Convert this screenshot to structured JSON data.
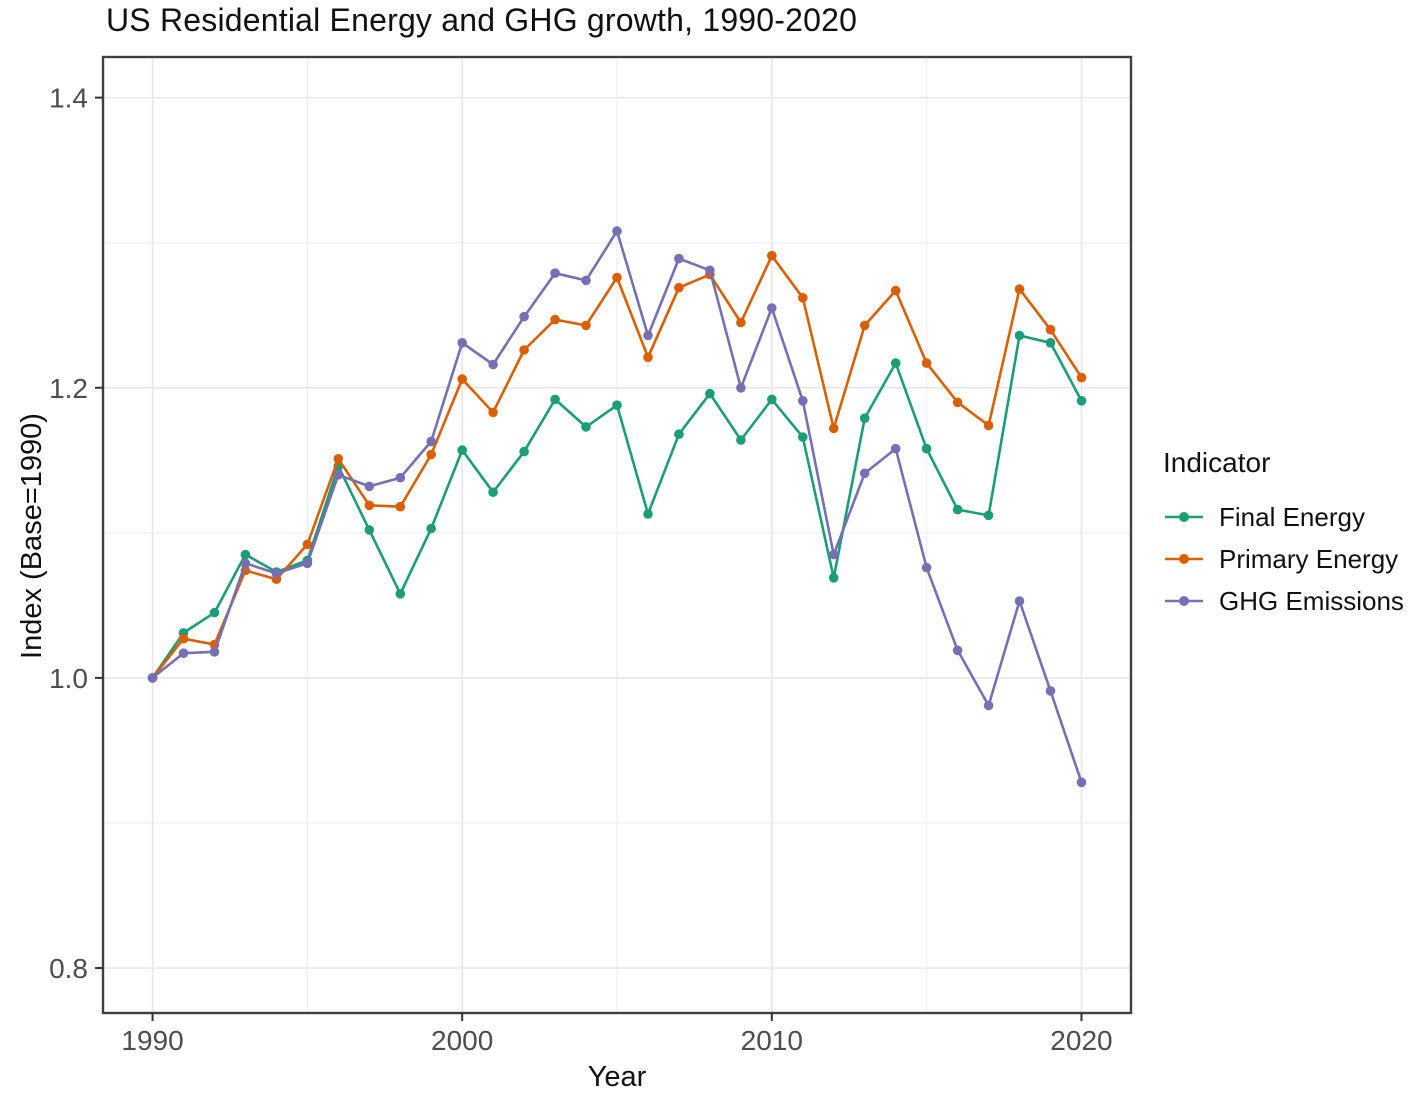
{
  "title": "US Residential Energy and GHG growth, 1990-2020",
  "axes": {
    "x": {
      "label": "Year",
      "major_ticks": [
        1990,
        2000,
        2010,
        2020
      ],
      "major_tick_labels": [
        "1990",
        "2000",
        "2010",
        "2020"
      ],
      "minor_ticks": [
        1995,
        2005,
        2015
      ],
      "range": [
        1988.4,
        2021.6
      ]
    },
    "y": {
      "label": "Index (Base=1990)",
      "major_ticks": [
        0.8,
        1.0,
        1.2,
        1.4
      ],
      "major_tick_labels": [
        "0.8",
        "1.0",
        "1.2",
        "1.4"
      ],
      "minor_ticks": [
        0.9,
        1.1,
        1.3
      ],
      "range": [
        0.769,
        1.428
      ]
    }
  },
  "legend": {
    "title": "Indicator",
    "position": "right",
    "items": [
      {
        "label": "Final Energy",
        "color": "#1b9e77"
      },
      {
        "label": "Primary Energy",
        "color": "#d95f02"
      },
      {
        "label": "GHG Emissions",
        "color": "#7570b3"
      }
    ]
  },
  "style_colors": {
    "panel_border": "#3f3f3f",
    "grid_major": "#e7e7e7",
    "grid_minor": "#f1f1f1",
    "tick_mark": "#333333",
    "tick_label": "#4d4d4d",
    "text": "#111111",
    "background": "#ffffff"
  },
  "chart_data": {
    "type": "line",
    "title": "US Residential Energy and GHG growth, 1990-2020",
    "xlabel": "Year",
    "ylabel": "Index (Base=1990)",
    "xlim": [
      1988.4,
      2021.6
    ],
    "ylim": [
      0.769,
      1.428
    ],
    "grid": true,
    "legend_position": "right",
    "markers": true,
    "x": [
      1990,
      1991,
      1992,
      1993,
      1994,
      1995,
      1996,
      1997,
      1998,
      1999,
      2000,
      2001,
      2002,
      2003,
      2004,
      2005,
      2006,
      2007,
      2008,
      2009,
      2010,
      2011,
      2012,
      2013,
      2014,
      2015,
      2016,
      2017,
      2018,
      2019,
      2020
    ],
    "series": [
      {
        "name": "Final Energy",
        "color": "#1b9e77",
        "values": [
          1.0,
          1.031,
          1.045,
          1.085,
          1.073,
          1.081,
          1.146,
          1.102,
          1.058,
          1.103,
          1.157,
          1.128,
          1.156,
          1.192,
          1.173,
          1.188,
          1.113,
          1.168,
          1.196,
          1.164,
          1.192,
          1.166,
          1.069,
          1.179,
          1.217,
          1.158,
          1.116,
          1.112,
          1.236,
          1.231,
          1.191
        ]
      },
      {
        "name": "Primary Energy",
        "color": "#d95f02",
        "values": [
          1.0,
          1.027,
          1.023,
          1.074,
          1.068,
          1.092,
          1.151,
          1.119,
          1.118,
          1.154,
          1.206,
          1.183,
          1.226,
          1.247,
          1.243,
          1.276,
          1.221,
          1.269,
          1.278,
          1.245,
          1.291,
          1.262,
          1.172,
          1.243,
          1.267,
          1.217,
          1.19,
          1.174,
          1.268,
          1.24,
          1.207
        ]
      },
      {
        "name": "GHG Emissions",
        "color": "#7570b3",
        "values": [
          1.0,
          1.017,
          1.018,
          1.079,
          1.072,
          1.079,
          1.14,
          1.132,
          1.138,
          1.163,
          1.231,
          1.216,
          1.249,
          1.279,
          1.274,
          1.308,
          1.236,
          1.289,
          1.281,
          1.2,
          1.255,
          1.191,
          1.085,
          1.141,
          1.158,
          1.076,
          1.019,
          0.981,
          1.053,
          0.991,
          0.928
        ]
      }
    ]
  }
}
